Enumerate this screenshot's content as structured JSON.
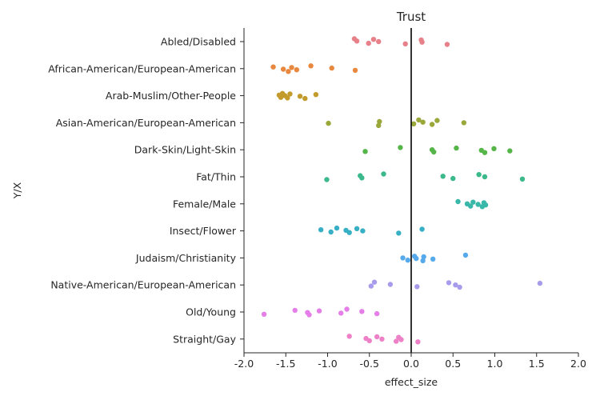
{
  "chart_data": {
    "type": "scatter",
    "subtype": "strip",
    "title": "Trust",
    "xlabel": "effect_size",
    "ylabel": "Y/X",
    "xlim": [
      -2.0,
      2.0
    ],
    "xticks": [
      "-2.0",
      "-1.5",
      "-1.0",
      "-0.5",
      "0.0",
      "0.5",
      "1.0",
      "1.5",
      "2.0"
    ],
    "reference_line_x": 0.0,
    "grid": false,
    "categories": [
      {
        "name": "Abled/Disabled",
        "color": "#e8808a",
        "values": [
          -0.68,
          -0.65,
          -0.51,
          -0.45,
          -0.39,
          -0.07,
          0.12,
          0.13,
          0.43
        ]
      },
      {
        "name": "African-American/European-American",
        "color": "#e8883f",
        "values": [
          -1.65,
          -1.53,
          -1.47,
          -1.43,
          -1.37,
          -1.2,
          -0.95,
          -0.67
        ]
      },
      {
        "name": "Arab-Muslim/Other-People",
        "color": "#c39a2c",
        "values": [
          -1.58,
          -1.56,
          -1.54,
          -1.51,
          -1.48,
          -1.45,
          -1.33,
          -1.27,
          -1.14
        ]
      },
      {
        "name": "Asian-American/European-American",
        "color": "#9aa83a",
        "values": [
          -0.99,
          -0.39,
          -0.38,
          0.03,
          0.09,
          0.14,
          0.25,
          0.31,
          0.63
        ]
      },
      {
        "name": "Dark-Skin/Light-Skin",
        "color": "#55b548",
        "values": [
          -0.55,
          -0.13,
          0.25,
          0.27,
          0.54,
          0.84,
          0.88,
          0.99,
          1.18
        ]
      },
      {
        "name": "Fat/Thin",
        "color": "#3cb98b",
        "values": [
          -1.01,
          -0.61,
          -0.59,
          -0.33,
          0.38,
          0.5,
          0.81,
          0.88,
          1.33
        ]
      },
      {
        "name": "Female/Male",
        "color": "#39b8a9",
        "values": [
          0.56,
          0.67,
          0.71,
          0.74,
          0.8,
          0.85,
          0.87,
          0.89
        ]
      },
      {
        "name": "Insect/Flower",
        "color": "#37afc5",
        "values": [
          -1.08,
          -0.96,
          -0.89,
          -0.78,
          -0.74,
          -0.65,
          -0.58,
          -0.15,
          0.13
        ]
      },
      {
        "name": "Judaism/Christianity",
        "color": "#56a9ea",
        "values": [
          -0.1,
          -0.04,
          0.04,
          0.06,
          0.14,
          0.15,
          0.26,
          0.65
        ]
      },
      {
        "name": "Native-American/European-American",
        "color": "#a79ceb",
        "values": [
          -0.48,
          -0.44,
          -0.25,
          0.07,
          0.45,
          0.53,
          0.58,
          1.54
        ]
      },
      {
        "name": "Old/Young",
        "color": "#e47fe8",
        "values": [
          -1.76,
          -1.39,
          -1.24,
          -1.22,
          -1.1,
          -0.84,
          -0.77,
          -0.59,
          -0.41
        ]
      },
      {
        "name": "Straight/Gay",
        "color": "#ee80c8",
        "values": [
          -0.74,
          -0.54,
          -0.5,
          -0.41,
          -0.35,
          -0.18,
          -0.15,
          -0.12,
          0.08
        ]
      }
    ]
  }
}
